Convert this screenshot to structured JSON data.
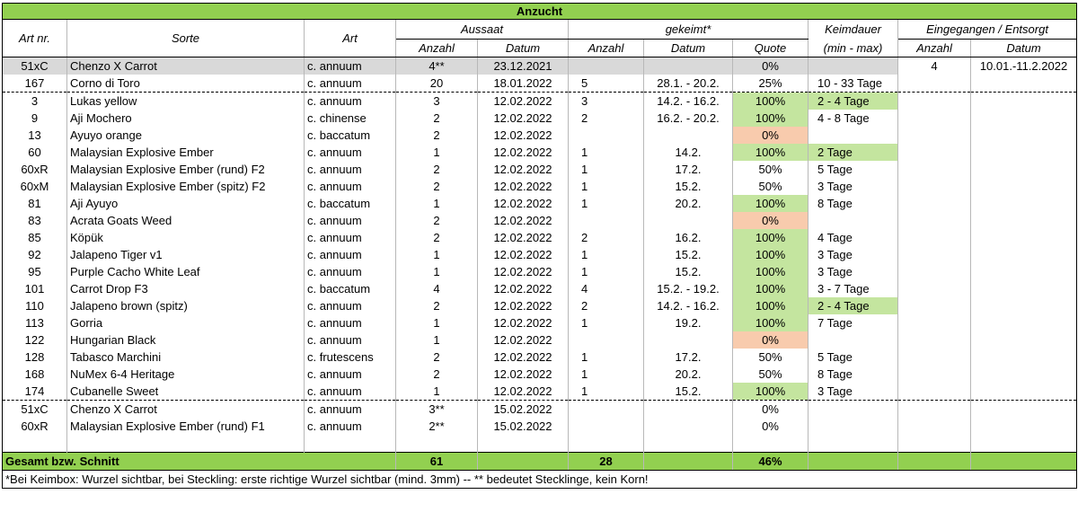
{
  "title": "Anzucht",
  "headers": {
    "art_nr": "Art nr.",
    "sorte": "Sorte",
    "art": "Art",
    "aussaat": "Aussaat",
    "gekeimt": "gekeimt*",
    "keimdauer": "Keimdauer",
    "keimdauer_sub": "(min - max)",
    "eingegangen": "Eingegangen / Entsorgt",
    "anzahl": "Anzahl",
    "datum": "Datum",
    "quote": "Quote"
  },
  "rows": [
    {
      "nr": "51xC",
      "sorte": "Chenzo X Carrot",
      "art": "c. annuum",
      "a_anz": "4**",
      "a_dat": "23.12.2021",
      "g_anz": "",
      "g_dat": "",
      "quote": "0%",
      "keim": "",
      "e_anz": "4",
      "e_dat": "10.01.-11.2.2022",
      "row_style": "grey",
      "quote_color": "",
      "keim_color": ""
    },
    {
      "nr": "167",
      "sorte": "Corno di Toro",
      "art": "c. annuum",
      "a_anz": "20",
      "a_dat": "18.01.2022",
      "g_anz": "5",
      "g_dat": "28.1. - 20.2.",
      "quote": "25%",
      "keim": "10 - 33 Tage",
      "e_anz": "",
      "e_dat": "",
      "row_style": "dash",
      "quote_color": "",
      "keim_color": ""
    },
    {
      "nr": "3",
      "sorte": "Lukas yellow",
      "art": "c. annuum",
      "a_anz": "3",
      "a_dat": "12.02.2022",
      "g_anz": "3",
      "g_dat": "14.2. - 16.2.",
      "quote": "100%",
      "keim": "2 - 4 Tage",
      "e_anz": "",
      "e_dat": "",
      "row_style": "",
      "quote_color": "green",
      "keim_color": "green"
    },
    {
      "nr": "9",
      "sorte": "Aji Mochero",
      "art": "c. chinense",
      "a_anz": "2",
      "a_dat": "12.02.2022",
      "g_anz": "2",
      "g_dat": "16.2. - 20.2.",
      "quote": "100%",
      "keim": "4 - 8 Tage",
      "e_anz": "",
      "e_dat": "",
      "row_style": "",
      "quote_color": "green",
      "keim_color": ""
    },
    {
      "nr": "13",
      "sorte": "Ayuyo orange",
      "art": "c. baccatum",
      "a_anz": "2",
      "a_dat": "12.02.2022",
      "g_anz": "",
      "g_dat": "",
      "quote": "0%",
      "keim": "",
      "e_anz": "",
      "e_dat": "",
      "row_style": "",
      "quote_color": "salmon",
      "keim_color": ""
    },
    {
      "nr": "60",
      "sorte": "Malaysian Explosive Ember",
      "art": "c. annuum",
      "a_anz": "1",
      "a_dat": "12.02.2022",
      "g_anz": "1",
      "g_dat": "14.2.",
      "quote": "100%",
      "keim": "2 Tage",
      "e_anz": "",
      "e_dat": "",
      "row_style": "",
      "quote_color": "green",
      "keim_color": "green"
    },
    {
      "nr": "60xR",
      "sorte": "Malaysian Explosive Ember (rund) F2",
      "art": "c. annuum",
      "a_anz": "2",
      "a_dat": "12.02.2022",
      "g_anz": "1",
      "g_dat": "17.2.",
      "quote": "50%",
      "keim": "5 Tage",
      "e_anz": "",
      "e_dat": "",
      "row_style": "",
      "quote_color": "",
      "keim_color": ""
    },
    {
      "nr": "60xM",
      "sorte": "Malaysian Explosive Ember (spitz) F2",
      "art": "c. annuum",
      "a_anz": "2",
      "a_dat": "12.02.2022",
      "g_anz": "1",
      "g_dat": "15.2.",
      "quote": "50%",
      "keim": "3 Tage",
      "e_anz": "",
      "e_dat": "",
      "row_style": "",
      "quote_color": "",
      "keim_color": ""
    },
    {
      "nr": "81",
      "sorte": "Aji Ayuyo",
      "art": "c. baccatum",
      "a_anz": "1",
      "a_dat": "12.02.2022",
      "g_anz": "1",
      "g_dat": "20.2.",
      "quote": "100%",
      "keim": "8 Tage",
      "e_anz": "",
      "e_dat": "",
      "row_style": "",
      "quote_color": "green",
      "keim_color": ""
    },
    {
      "nr": "83",
      "sorte": "Acrata Goats Weed",
      "art": "c. annuum",
      "a_anz": "2",
      "a_dat": "12.02.2022",
      "g_anz": "",
      "g_dat": "",
      "quote": "0%",
      "keim": "",
      "e_anz": "",
      "e_dat": "",
      "row_style": "",
      "quote_color": "salmon",
      "keim_color": ""
    },
    {
      "nr": "85",
      "sorte": "Köpük",
      "art": "c. annuum",
      "a_anz": "2",
      "a_dat": "12.02.2022",
      "g_anz": "2",
      "g_dat": "16.2.",
      "quote": "100%",
      "keim": "4 Tage",
      "e_anz": "",
      "e_dat": "",
      "row_style": "",
      "quote_color": "green",
      "keim_color": ""
    },
    {
      "nr": "92",
      "sorte": "Jalapeno Tiger v1",
      "art": "c. annuum",
      "a_anz": "1",
      "a_dat": "12.02.2022",
      "g_anz": "1",
      "g_dat": "15.2.",
      "quote": "100%",
      "keim": "3 Tage",
      "e_anz": "",
      "e_dat": "",
      "row_style": "",
      "quote_color": "green",
      "keim_color": ""
    },
    {
      "nr": "95",
      "sorte": "Purple Cacho White Leaf",
      "art": "c. annuum",
      "a_anz": "1",
      "a_dat": "12.02.2022",
      "g_anz": "1",
      "g_dat": "15.2.",
      "quote": "100%",
      "keim": "3 Tage",
      "e_anz": "",
      "e_dat": "",
      "row_style": "",
      "quote_color": "green",
      "keim_color": ""
    },
    {
      "nr": "101",
      "sorte": "Carrot Drop F3",
      "art": "c. baccatum",
      "a_anz": "4",
      "a_dat": "12.02.2022",
      "g_anz": "4",
      "g_dat": "15.2. - 19.2.",
      "quote": "100%",
      "keim": "3 - 7 Tage",
      "e_anz": "",
      "e_dat": "",
      "row_style": "",
      "quote_color": "green",
      "keim_color": ""
    },
    {
      "nr": "110",
      "sorte": "Jalapeno brown (spitz)",
      "art": "c. annuum",
      "a_anz": "2",
      "a_dat": "12.02.2022",
      "g_anz": "2",
      "g_dat": "14.2. - 16.2.",
      "quote": "100%",
      "keim": "2 - 4 Tage",
      "e_anz": "",
      "e_dat": "",
      "row_style": "",
      "quote_color": "green",
      "keim_color": "green"
    },
    {
      "nr": "113",
      "sorte": "Gorria",
      "art": "c. annuum",
      "a_anz": "1",
      "a_dat": "12.02.2022",
      "g_anz": "1",
      "g_dat": "19.2.",
      "quote": "100%",
      "keim": "7 Tage",
      "e_anz": "",
      "e_dat": "",
      "row_style": "",
      "quote_color": "green",
      "keim_color": ""
    },
    {
      "nr": "122",
      "sorte": "Hungarian Black",
      "art": "c. annuum",
      "a_anz": "1",
      "a_dat": "12.02.2022",
      "g_anz": "",
      "g_dat": "",
      "quote": "0%",
      "keim": "",
      "e_anz": "",
      "e_dat": "",
      "row_style": "",
      "quote_color": "salmon",
      "keim_color": ""
    },
    {
      "nr": "128",
      "sorte": "Tabasco Marchini",
      "art": "c. frutescens",
      "a_anz": "2",
      "a_dat": "12.02.2022",
      "g_anz": "1",
      "g_dat": "17.2.",
      "quote": "50%",
      "keim": "5 Tage",
      "e_anz": "",
      "e_dat": "",
      "row_style": "",
      "quote_color": "",
      "keim_color": ""
    },
    {
      "nr": "168",
      "sorte": "NuMex 6-4 Heritage",
      "art": "c. annuum",
      "a_anz": "2",
      "a_dat": "12.02.2022",
      "g_anz": "1",
      "g_dat": "20.2.",
      "quote": "50%",
      "keim": "8 Tage",
      "e_anz": "",
      "e_dat": "",
      "row_style": "",
      "quote_color": "",
      "keim_color": ""
    },
    {
      "nr": "174",
      "sorte": "Cubanelle Sweet",
      "art": "c. annuum",
      "a_anz": "1",
      "a_dat": "12.02.2022",
      "g_anz": "1",
      "g_dat": "15.2.",
      "quote": "100%",
      "keim": "3 Tage",
      "e_anz": "",
      "e_dat": "",
      "row_style": "dash",
      "quote_color": "green",
      "keim_color": ""
    },
    {
      "nr": "51xC",
      "sorte": "Chenzo X Carrot",
      "art": "c. annuum",
      "a_anz": "3**",
      "a_dat": "15.02.2022",
      "g_anz": "",
      "g_dat": "",
      "quote": "0%",
      "keim": "",
      "e_anz": "",
      "e_dat": "",
      "row_style": "",
      "quote_color": "",
      "keim_color": ""
    },
    {
      "nr": "60xR",
      "sorte": "Malaysian Explosive Ember (rund) F1",
      "art": "c. annuum",
      "a_anz": "2**",
      "a_dat": "15.02.2022",
      "g_anz": "",
      "g_dat": "",
      "quote": "0%",
      "keim": "",
      "e_anz": "",
      "e_dat": "",
      "row_style": "",
      "quote_color": "",
      "keim_color": ""
    },
    {
      "nr": "",
      "sorte": "",
      "art": "",
      "a_anz": "",
      "a_dat": "",
      "g_anz": "",
      "g_dat": "",
      "quote": "",
      "keim": "",
      "e_anz": "",
      "e_dat": "",
      "row_style": "",
      "quote_color": "",
      "keim_color": ""
    }
  ],
  "total": {
    "label": "Gesamt bzw. Schnitt",
    "aussaat_anzahl": "61",
    "gekeimt_anzahl": "28",
    "quote": "46%"
  },
  "footnote": "*Bei Keimbox: Wurzel sichtbar, bei Steckling: erste richtige Wurzel sichtbar (mind. 3mm)  --  ** bedeutet Stecklinge, kein Korn!",
  "colors": {
    "header_green": "#92d050",
    "cell_green": "#c4e59f",
    "cell_salmon": "#f8cbad",
    "row_grey": "#d9d9d9"
  }
}
